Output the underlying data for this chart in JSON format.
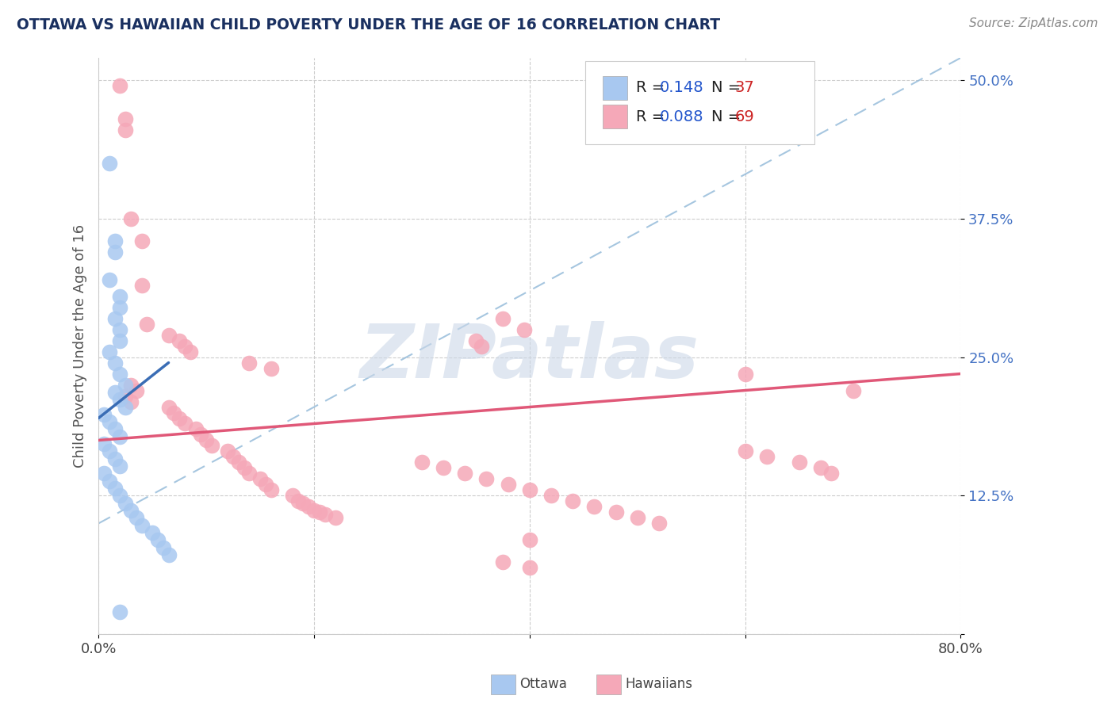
{
  "title": "OTTAWA VS HAWAIIAN CHILD POVERTY UNDER THE AGE OF 16 CORRELATION CHART",
  "source": "Source: ZipAtlas.com",
  "ylabel": "Child Poverty Under the Age of 16",
  "xlim": [
    0.0,
    0.8
  ],
  "ylim": [
    0.0,
    0.52
  ],
  "xticks": [
    0.0,
    0.2,
    0.4,
    0.6,
    0.8
  ],
  "xticklabels": [
    "0.0%",
    "",
    "",
    "",
    "80.0%"
  ],
  "yticks": [
    0.0,
    0.125,
    0.25,
    0.375,
    0.5
  ],
  "yticklabels": [
    "",
    "12.5%",
    "25.0%",
    "37.5%",
    "50.0%"
  ],
  "ottawa_color": "#a8c8f0",
  "hawaiian_color": "#f5a8b8",
  "ottawa_line_color": "#3a6db5",
  "hawaiian_line_color": "#e05878",
  "dashed_color": "#90b8d8",
  "legend_R_color": "#2255aa",
  "legend_N_color": "#cc3333",
  "watermark": "ZIPatlas",
  "watermark_color": "#ccd8e8",
  "ottawa_points": [
    [
      0.01,
      0.425
    ],
    [
      0.015,
      0.355
    ],
    [
      0.015,
      0.345
    ],
    [
      0.01,
      0.32
    ],
    [
      0.02,
      0.305
    ],
    [
      0.02,
      0.295
    ],
    [
      0.015,
      0.285
    ],
    [
      0.02,
      0.275
    ],
    [
      0.02,
      0.265
    ],
    [
      0.01,
      0.255
    ],
    [
      0.015,
      0.245
    ],
    [
      0.02,
      0.235
    ],
    [
      0.025,
      0.225
    ],
    [
      0.015,
      0.218
    ],
    [
      0.02,
      0.212
    ],
    [
      0.025,
      0.205
    ],
    [
      0.005,
      0.198
    ],
    [
      0.01,
      0.192
    ],
    [
      0.015,
      0.185
    ],
    [
      0.02,
      0.178
    ],
    [
      0.005,
      0.172
    ],
    [
      0.01,
      0.165
    ],
    [
      0.015,
      0.158
    ],
    [
      0.02,
      0.152
    ],
    [
      0.005,
      0.145
    ],
    [
      0.01,
      0.138
    ],
    [
      0.015,
      0.132
    ],
    [
      0.02,
      0.125
    ],
    [
      0.025,
      0.118
    ],
    [
      0.03,
      0.112
    ],
    [
      0.035,
      0.105
    ],
    [
      0.04,
      0.098
    ],
    [
      0.05,
      0.092
    ],
    [
      0.055,
      0.085
    ],
    [
      0.06,
      0.078
    ],
    [
      0.065,
      0.072
    ],
    [
      0.02,
      0.02
    ]
  ],
  "hawaiian_points": [
    [
      0.02,
      0.495
    ],
    [
      0.025,
      0.465
    ],
    [
      0.025,
      0.455
    ],
    [
      0.03,
      0.375
    ],
    [
      0.04,
      0.355
    ],
    [
      0.04,
      0.315
    ],
    [
      0.045,
      0.28
    ],
    [
      0.065,
      0.27
    ],
    [
      0.075,
      0.265
    ],
    [
      0.08,
      0.26
    ],
    [
      0.085,
      0.255
    ],
    [
      0.375,
      0.285
    ],
    [
      0.395,
      0.275
    ],
    [
      0.35,
      0.265
    ],
    [
      0.355,
      0.26
    ],
    [
      0.14,
      0.245
    ],
    [
      0.16,
      0.24
    ],
    [
      0.6,
      0.235
    ],
    [
      0.03,
      0.225
    ],
    [
      0.035,
      0.22
    ],
    [
      0.025,
      0.215
    ],
    [
      0.03,
      0.21
    ],
    [
      0.065,
      0.205
    ],
    [
      0.07,
      0.2
    ],
    [
      0.075,
      0.195
    ],
    [
      0.08,
      0.19
    ],
    [
      0.09,
      0.185
    ],
    [
      0.095,
      0.18
    ],
    [
      0.1,
      0.175
    ],
    [
      0.105,
      0.17
    ],
    [
      0.12,
      0.165
    ],
    [
      0.125,
      0.16
    ],
    [
      0.13,
      0.155
    ],
    [
      0.135,
      0.15
    ],
    [
      0.14,
      0.145
    ],
    [
      0.15,
      0.14
    ],
    [
      0.155,
      0.135
    ],
    [
      0.16,
      0.13
    ],
    [
      0.18,
      0.125
    ],
    [
      0.185,
      0.12
    ],
    [
      0.19,
      0.118
    ],
    [
      0.195,
      0.115
    ],
    [
      0.2,
      0.112
    ],
    [
      0.205,
      0.11
    ],
    [
      0.21,
      0.108
    ],
    [
      0.22,
      0.105
    ],
    [
      0.3,
      0.155
    ],
    [
      0.32,
      0.15
    ],
    [
      0.34,
      0.145
    ],
    [
      0.36,
      0.14
    ],
    [
      0.38,
      0.135
    ],
    [
      0.4,
      0.13
    ],
    [
      0.42,
      0.125
    ],
    [
      0.44,
      0.12
    ],
    [
      0.46,
      0.115
    ],
    [
      0.48,
      0.11
    ],
    [
      0.5,
      0.105
    ],
    [
      0.52,
      0.1
    ],
    [
      0.4,
      0.085
    ],
    [
      0.6,
      0.165
    ],
    [
      0.62,
      0.16
    ],
    [
      0.65,
      0.155
    ],
    [
      0.67,
      0.15
    ],
    [
      0.68,
      0.145
    ],
    [
      0.7,
      0.22
    ],
    [
      0.375,
      0.065
    ],
    [
      0.4,
      0.06
    ]
  ],
  "ottawa_trend_x": [
    0.0,
    0.065
  ],
  "ottawa_trend_y": [
    0.195,
    0.245
  ],
  "hawaiian_trend_x": [
    0.0,
    0.8
  ],
  "hawaiian_trend_y": [
    0.175,
    0.235
  ],
  "dashed_trend_x": [
    0.0,
    0.8
  ],
  "dashed_trend_y": [
    0.1,
    0.52
  ]
}
